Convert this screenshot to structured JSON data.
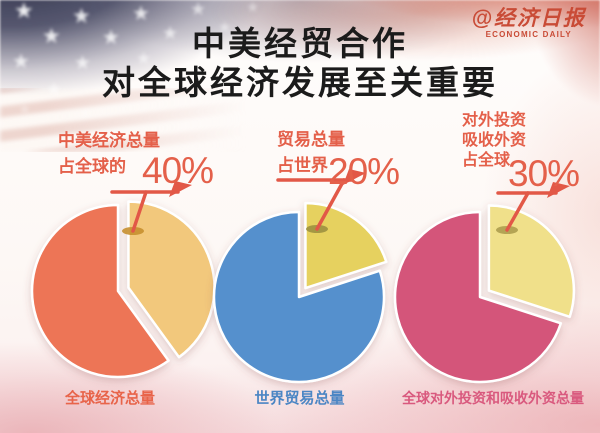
{
  "title": {
    "line1": "中美经贸合作",
    "line2": "对全球经济发展至关重要"
  },
  "logo": {
    "handle": "@经济日报",
    "subtitle": "ECONOMIC DAILY",
    "color": "#c94b36"
  },
  "accent": {
    "leader_color": "#e25847",
    "title_color": "#1b1b1b",
    "callout_text_color": "#e4604a"
  },
  "chart_data": [
    {
      "type": "pie",
      "callout": [
        "中美经济总量",
        "占全球的"
      ],
      "value_label": "40%",
      "highlight_percent": 40,
      "highlight_color": "#f2c87b",
      "base_color": "#ed7456",
      "marker_color": "#c68f2f",
      "footer": "全球经济总量",
      "footer_color": "#e8644a",
      "legend_position": "none"
    },
    {
      "type": "pie",
      "callout": [
        "贸易总量",
        "占世界"
      ],
      "value_label": "20%",
      "highlight_percent": 20,
      "highlight_color": "#e6d15f",
      "base_color": "#5590cd",
      "marker_color": "#9c9040",
      "footer": "世界贸易总量",
      "footer_color": "#4c86c4",
      "legend_position": "none"
    },
    {
      "type": "pie",
      "callout": [
        "对外投资",
        "吸收外资",
        "占全球"
      ],
      "value_label": "30%",
      "highlight_percent": 30,
      "highlight_color": "#f0e08a",
      "base_color": "#d4557a",
      "marker_color": "#ad9d4e",
      "footer": "全球对外投资和吸收外资总量",
      "footer_color": "#d9597e",
      "legend_position": "none"
    }
  ]
}
